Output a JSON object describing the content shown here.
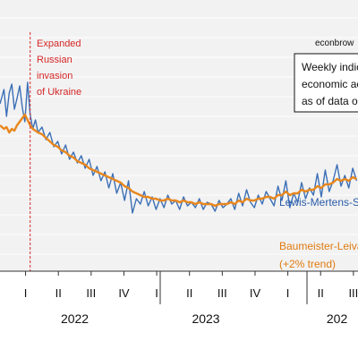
{
  "credit": "econbrow",
  "legend_box": {
    "lines": [
      "Weekly indic",
      "economic act",
      "as of data of"
    ]
  },
  "annotation": {
    "lines": [
      "Expanded",
      "Russian",
      "invasion",
      "of Ukraine"
    ]
  },
  "colors": {
    "series_blue": "#3b6fb6",
    "series_orange": "#e8871e",
    "annotation": "#d62728",
    "plot_background": "#f2f2f2",
    "gridline": "#ffffff"
  },
  "chart_data": {
    "type": "line",
    "grid": true,
    "x_ticks": [
      {
        "label": "I",
        "x": 2021.125
      },
      {
        "label": "II",
        "x": 2021.375
      },
      {
        "label": "III",
        "x": 2021.625
      },
      {
        "label": "IV",
        "x": 2021.875
      },
      {
        "label": "I",
        "x": 2022.125
      },
      {
        "label": "II",
        "x": 2022.375
      },
      {
        "label": "III",
        "x": 2022.625
      },
      {
        "label": "IV",
        "x": 2022.875
      },
      {
        "label": "I",
        "x": 2023.125
      },
      {
        "label": "II",
        "x": 2023.375
      },
      {
        "label": "III",
        "x": 2023.625
      }
    ],
    "year_labels": [
      {
        "label": "2022",
        "x": 2021.5
      },
      {
        "label": "2023",
        "x": 2022.5
      },
      {
        "label": "202",
        "x": 2023.5
      }
    ],
    "xlim": [
      2020.93,
      2023.66
    ],
    "ylim": [
      -2,
      10
    ],
    "event_line_x": 2021.16,
    "series": [
      {
        "name": "Lewis-Mertens-S",
        "color": "#3b6fb6",
        "x": [
          2020.93,
          2020.96,
          2020.98,
          2021.0,
          2021.02,
          2021.04,
          2021.06,
          2021.08,
          2021.1,
          2021.12,
          2021.14,
          2021.16,
          2021.18,
          2021.2,
          2021.22,
          2021.25,
          2021.28,
          2021.31,
          2021.34,
          2021.37,
          2021.4,
          2021.43,
          2021.46,
          2021.49,
          2021.52,
          2021.55,
          2021.58,
          2021.61,
          2021.64,
          2021.67,
          2021.7,
          2021.73,
          2021.76,
          2021.79,
          2021.82,
          2021.85,
          2021.88,
          2021.91,
          2021.94,
          2021.97,
          2022.0,
          2022.03,
          2022.06,
          2022.09,
          2022.12,
          2022.15,
          2022.18,
          2022.21,
          2022.24,
          2022.27,
          2022.3,
          2022.33,
          2022.36,
          2022.39,
          2022.42,
          2022.45,
          2022.48,
          2022.51,
          2022.54,
          2022.57,
          2022.6,
          2022.63,
          2022.66,
          2022.69,
          2022.72,
          2022.75,
          2022.78,
          2022.81,
          2022.84,
          2022.87,
          2022.9,
          2022.93,
          2022.96,
          2022.99,
          2023.02,
          2023.05,
          2023.08,
          2023.11,
          2023.14,
          2023.17,
          2023.2,
          2023.23,
          2023.26,
          2023.29,
          2023.32,
          2023.35,
          2023.38,
          2023.41,
          2023.44,
          2023.47,
          2023.5,
          2023.53,
          2023.56,
          2023.59,
          2023.62,
          2023.65
        ],
        "values": [
          6.2,
          7.0,
          5.5,
          6.8,
          7.3,
          5.9,
          6.5,
          7.2,
          6.0,
          5.2,
          7.4,
          5.6,
          4.8,
          5.3,
          4.6,
          4.9,
          4.2,
          4.6,
          3.8,
          4.1,
          3.4,
          3.9,
          3.1,
          3.5,
          2.9,
          3.3,
          2.6,
          3.1,
          2.2,
          2.7,
          1.9,
          2.4,
          1.5,
          2.3,
          1.2,
          1.8,
          0.8,
          1.9,
          0.1,
          0.9,
          0.6,
          1.3,
          0.5,
          1.0,
          0.3,
          0.9,
          0.4,
          1.1,
          0.6,
          0.8,
          0.3,
          1.0,
          0.5,
          0.7,
          0.4,
          0.9,
          0.3,
          0.7,
          0.6,
          0.2,
          0.8,
          0.4,
          0.6,
          0.9,
          0.3,
          1.2,
          0.5,
          1.4,
          0.7,
          0.4,
          1.1,
          0.6,
          1.3,
          0.9,
          0.5,
          1.6,
          0.8,
          1.9,
          0.4,
          1.2,
          0.7,
          1.8,
          0.9,
          1.5,
          1.1,
          2.3,
          1.0,
          2.5,
          1.3,
          1.9,
          2.8,
          1.6,
          2.2,
          1.5,
          2.6,
          1.9
        ]
      },
      {
        "name": "Baumeister-Leiva",
        "color": "#e8871e",
        "x": [
          2020.93,
          2020.96,
          2020.98,
          2021.0,
          2021.02,
          2021.04,
          2021.06,
          2021.08,
          2021.1,
          2021.12,
          2021.14,
          2021.16,
          2021.18,
          2021.2,
          2021.22,
          2021.25,
          2021.28,
          2021.31,
          2021.34,
          2021.37,
          2021.4,
          2021.43,
          2021.46,
          2021.49,
          2021.52,
          2021.55,
          2021.58,
          2021.61,
          2021.64,
          2021.67,
          2021.7,
          2021.73,
          2021.76,
          2021.79,
          2021.82,
          2021.85,
          2021.88,
          2021.91,
          2021.94,
          2021.97,
          2022.0,
          2022.03,
          2022.06,
          2022.09,
          2022.12,
          2022.15,
          2022.18,
          2022.21,
          2022.24,
          2022.27,
          2022.3,
          2022.33,
          2022.36,
          2022.39,
          2022.42,
          2022.45,
          2022.48,
          2022.51,
          2022.54,
          2022.57,
          2022.6,
          2022.63,
          2022.66,
          2022.69,
          2022.72,
          2022.75,
          2022.78,
          2022.81,
          2022.84,
          2022.87,
          2022.9,
          2022.93,
          2022.96,
          2022.99,
          2023.02,
          2023.05,
          2023.08,
          2023.11,
          2023.14,
          2023.17,
          2023.2,
          2023.23,
          2023.26,
          2023.29,
          2023.32,
          2023.35,
          2023.38,
          2023.41,
          2023.44,
          2023.47,
          2023.5,
          2023.53,
          2023.56,
          2023.59,
          2023.62,
          2023.65
        ],
        "values": [
          5.0,
          4.8,
          4.9,
          4.6,
          4.8,
          4.7,
          5.0,
          5.2,
          5.4,
          5.6,
          5.3,
          5.0,
          4.8,
          4.7,
          4.6,
          4.5,
          4.3,
          4.1,
          3.9,
          3.8,
          3.6,
          3.5,
          3.3,
          3.2,
          3.0,
          2.9,
          2.8,
          2.6,
          2.5,
          2.4,
          2.3,
          2.2,
          2.1,
          2.0,
          1.9,
          1.8,
          1.6,
          1.5,
          1.3,
          1.2,
          1.1,
          1.0,
          1.0,
          0.9,
          0.9,
          0.8,
          0.8,
          0.9,
          0.8,
          0.8,
          0.7,
          0.8,
          0.7,
          0.7,
          0.6,
          0.7,
          0.6,
          0.6,
          0.6,
          0.5,
          0.6,
          0.6,
          0.6,
          0.7,
          0.6,
          0.8,
          0.7,
          0.9,
          0.8,
          0.8,
          0.9,
          0.9,
          1.0,
          1.0,
          0.9,
          1.1,
          1.1,
          1.3,
          1.1,
          1.2,
          1.2,
          1.4,
          1.3,
          1.4,
          1.4,
          1.6,
          1.5,
          1.7,
          1.7,
          1.8,
          2.0,
          1.9,
          2.0,
          1.9,
          2.1,
          2.0
        ]
      }
    ],
    "series_labels": {
      "blue": "Lewis-Mertens-S",
      "orange_line1": "Baumeister-Leiva",
      "orange_line2": "(+2% trend)"
    }
  }
}
